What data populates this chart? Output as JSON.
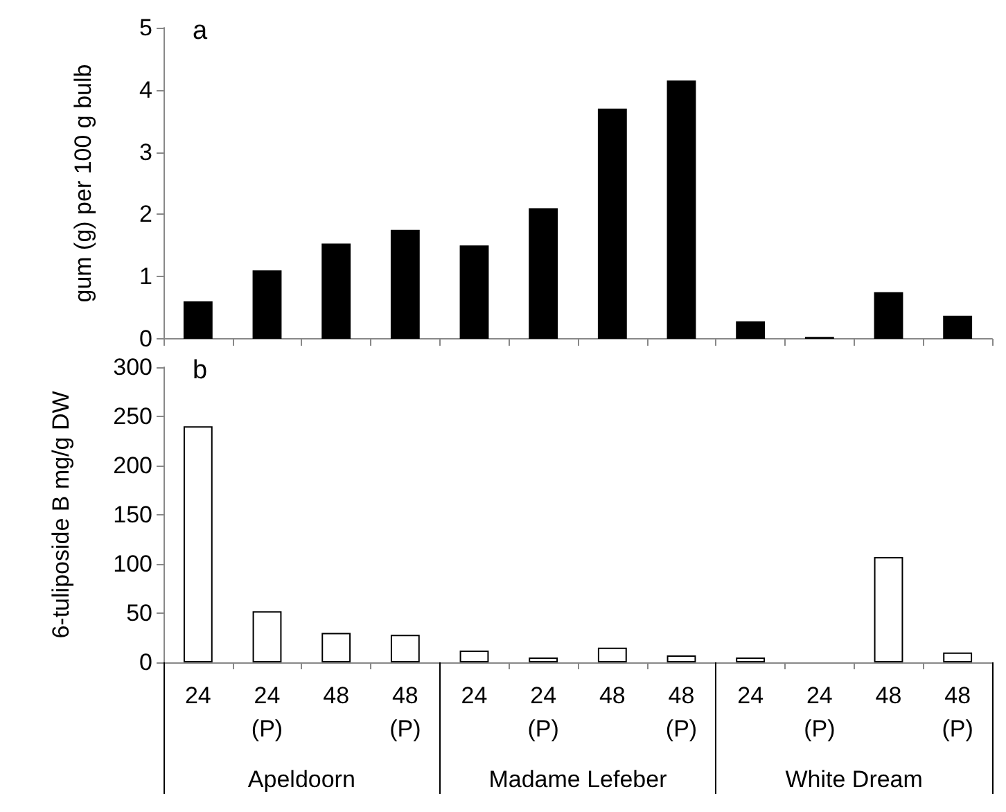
{
  "chart_data": [
    {
      "type": "bar",
      "title": "a",
      "ylabel": "gum (g) per 100 g bulb",
      "categories": [
        null,
        null,
        null,
        null,
        null,
        null,
        null,
        null,
        null,
        null,
        null,
        null
      ],
      "values": [
        0.6,
        1.1,
        1.53,
        1.75,
        1.5,
        2.1,
        3.7,
        4.15,
        0.28,
        0.03,
        0.75,
        0.37
      ],
      "color": "#000000",
      "ylim": [
        0,
        5
      ],
      "yticks": [
        0,
        1,
        2,
        3,
        4,
        5
      ],
      "tick_labels": "y"
    },
    {
      "type": "bar",
      "title": "b",
      "ylabel": "6-tuliposide B mg/g DW",
      "categories": [
        "24",
        "24\n(P)",
        "48",
        "48\n(P)",
        "24",
        "24\n(P)",
        "48",
        "48\n(P)",
        "24",
        "24\n(P)",
        "48",
        "48\n(P)"
      ],
      "values": [
        240,
        52,
        30,
        28,
        12,
        5,
        15,
        7,
        5,
        0,
        107,
        10
      ],
      "color": "#ffffff",
      "ylim": [
        0,
        300
      ],
      "yticks": [
        0,
        50,
        100,
        150,
        200,
        250,
        300
      ],
      "annotations": [
        "Apeldoorn",
        "Madame Lefeber",
        "White Dream"
      ]
    }
  ]
}
